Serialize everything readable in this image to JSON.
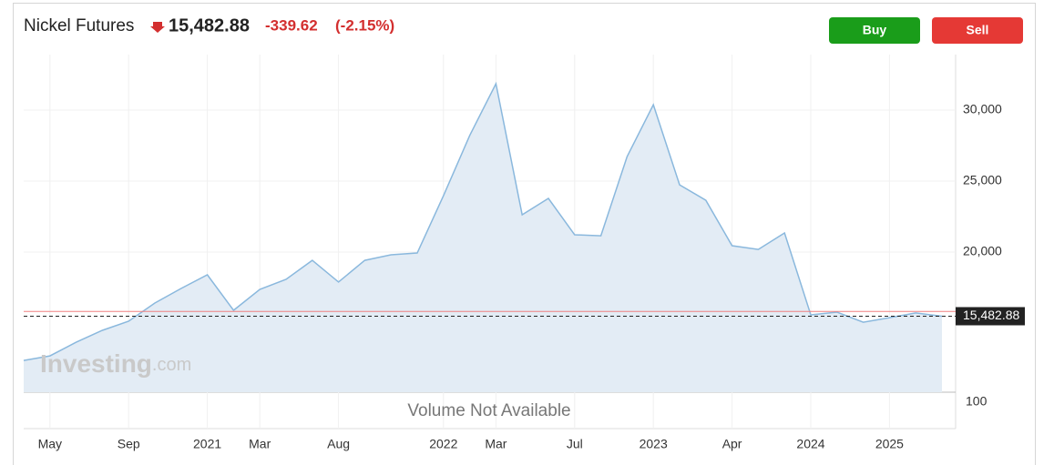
{
  "chart_data": {
    "type": "area",
    "title": "Nickel Futures",
    "last_price": {
      "value": 15482.88,
      "label": "15,482.88"
    },
    "change": -339.62,
    "change_percent": {
      "value": -2.15,
      "label": "(-2.15%)"
    },
    "previous_close": 15822.5,
    "buttons": [
      "Buy",
      "Sell"
    ],
    "watermark": [
      "Investing",
      ".com"
    ],
    "volume_note": "Volume Not Available",
    "volume_yticks": [
      100
    ],
    "categories": [
      null,
      "May",
      null,
      null,
      "Sep",
      null,
      null,
      "2021",
      null,
      "Mar",
      null,
      null,
      "Aug",
      null,
      null,
      null,
      "2022",
      null,
      "Mar",
      null,
      null,
      "Jul",
      null,
      null,
      "2023",
      null,
      null,
      "Apr",
      null,
      null,
      "2024",
      null,
      null,
      "2025",
      null,
      null
    ],
    "values": [
      12370,
      12690,
      13650,
      14490,
      15130,
      16410,
      17440,
      18400,
      15900,
      17370,
      18080,
      19420,
      17890,
      19420,
      19810,
      19940,
      23970,
      28210,
      31860,
      22630,
      23780,
      21220,
      21150,
      26730,
      30380,
      24740,
      23650,
      20450,
      20190,
      21350,
      15580,
      15770,
      15060,
      15380,
      15710,
      15480
    ],
    "color": "#8ab8dd",
    "ylim": [
      10130,
      33910
    ],
    "yticks": [
      {
        "value": 20000,
        "label": "20,000"
      },
      {
        "value": 25000,
        "label": "25,000"
      },
      {
        "value": 30000,
        "label": "30,000"
      }
    ],
    "grid": true
  }
}
